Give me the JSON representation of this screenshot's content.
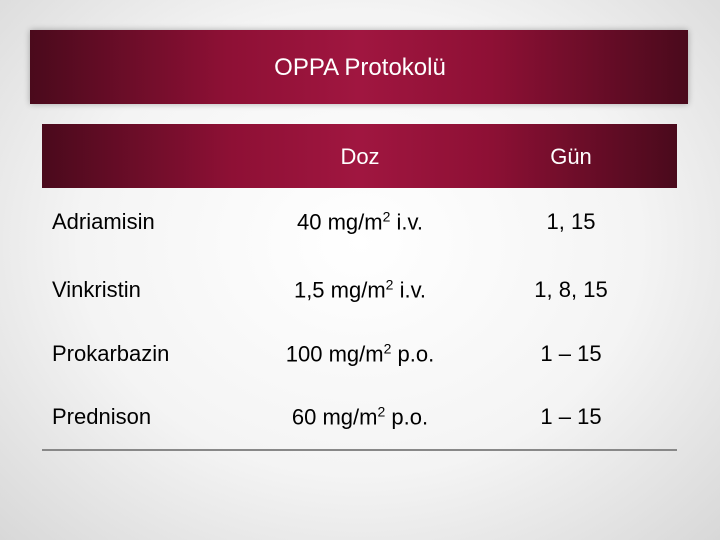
{
  "title": "OPPA Protokolü",
  "table": {
    "header": [
      "Doz",
      "Gün"
    ],
    "rows": [
      {
        "name": "Adriamisin",
        "dose": {
          "before": "40 mg/m",
          "sup": "2",
          "after": " i.v."
        },
        "days": "1, 15"
      },
      {
        "name": "Vinkristin",
        "dose": {
          "before": "1,5 mg/m",
          "sup": "2",
          "after": " i.v."
        },
        "days": "1, 8, 15"
      },
      {
        "name": "Prokarbazin",
        "dose": {
          "before": "100 mg/m",
          "sup": "2",
          "after": " p.o."
        },
        "days": "1 – 15"
      },
      {
        "name": "Prednison",
        "dose": {
          "before": "60 mg/m",
          "sup": "2",
          "after": " p.o."
        },
        "days": "1 – 15"
      }
    ]
  }
}
